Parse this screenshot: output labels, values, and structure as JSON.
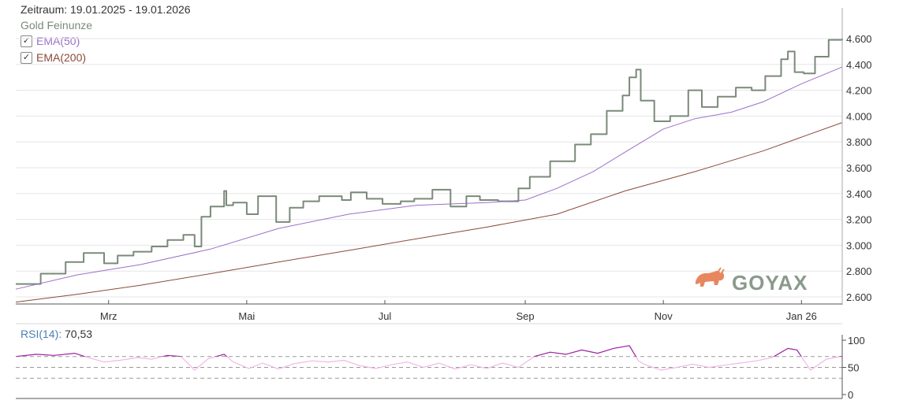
{
  "header": {
    "zeitraum": "Zeitraum: 19.01.2025 - 19.01.2026",
    "series_label": "Gold Feinunze"
  },
  "legend": [
    {
      "label": "EMA(50)",
      "checked": true,
      "color": "#9b6fc8"
    },
    {
      "label": "EMA(200)",
      "checked": true,
      "color": "#8a4a3a"
    }
  ],
  "rsi": {
    "label": "RSI(14):",
    "value": "70,53"
  },
  "brand": {
    "name": "GOYAX",
    "icon": "bull-icon"
  },
  "colors": {
    "price": "#7a8a7a",
    "ema50": "#9b6fc8",
    "ema200": "#8a4a3a",
    "rsi_high": "#9b1fa0",
    "rsi_low": "#f0b8e8",
    "grid": "#e6e6e6",
    "brand_bull": "#e8875f",
    "brand_text": "#8a9a8a"
  },
  "chart_data": [
    {
      "type": "line",
      "title": "",
      "x_ticks": [
        "Mrz",
        "Mai",
        "Jul",
        "Sep",
        "Nov",
        "Jan 26"
      ],
      "y_ticks": [
        "2.600",
        "2.800",
        "3.000",
        "3.200",
        "3.400",
        "3.600",
        "3.800",
        "4.000",
        "4.200",
        "4.400",
        "4.600"
      ],
      "ylim": [
        2540,
        4660
      ],
      "x_range": [
        "2025-01-19",
        "2026-01-19"
      ],
      "grid": true,
      "legend_position": "top-left",
      "series": [
        {
          "name": "Gold Feinunze",
          "x": [
            "2025-01-19",
            "2025-01-30",
            "2025-02-10",
            "2025-02-18",
            "2025-02-27",
            "2025-03-05",
            "2025-03-12",
            "2025-03-20",
            "2025-03-27",
            "2025-04-03",
            "2025-04-08",
            "2025-04-11",
            "2025-04-15",
            "2025-04-21",
            "2025-04-22",
            "2025-04-25",
            "2025-05-01",
            "2025-05-06",
            "2025-05-14",
            "2025-05-20",
            "2025-05-26",
            "2025-06-02",
            "2025-06-12",
            "2025-06-16",
            "2025-06-23",
            "2025-06-30",
            "2025-07-08",
            "2025-07-14",
            "2025-07-22",
            "2025-07-30",
            "2025-08-06",
            "2025-08-12",
            "2025-08-20",
            "2025-08-29",
            "2025-09-03",
            "2025-09-12",
            "2025-09-23",
            "2025-09-30",
            "2025-10-07",
            "2025-10-14",
            "2025-10-17",
            "2025-10-20",
            "2025-10-22",
            "2025-10-28",
            "2025-11-04",
            "2025-11-12",
            "2025-11-18",
            "2025-11-25",
            "2025-12-03",
            "2025-12-10",
            "2025-12-16",
            "2025-12-23",
            "2025-12-26",
            "2025-12-29",
            "2026-01-02",
            "2026-01-07",
            "2026-01-13",
            "2026-01-19"
          ],
          "y": [
            2700,
            2780,
            2870,
            2940,
            2860,
            2920,
            2950,
            2990,
            3040,
            3080,
            2990,
            3220,
            3300,
            3420,
            3310,
            3330,
            3240,
            3380,
            3180,
            3290,
            3340,
            3380,
            3350,
            3410,
            3360,
            3320,
            3340,
            3360,
            3430,
            3300,
            3380,
            3350,
            3340,
            3440,
            3530,
            3650,
            3780,
            3860,
            4040,
            4160,
            4300,
            4360,
            4120,
            3960,
            4000,
            4200,
            4070,
            4150,
            4220,
            4200,
            4310,
            4440,
            4500,
            4340,
            4330,
            4460,
            4590,
            4600
          ]
        },
        {
          "name": "EMA(50)",
          "x": [
            "2025-01-19",
            "2025-02-15",
            "2025-03-15",
            "2025-04-15",
            "2025-05-15",
            "2025-06-15",
            "2025-07-15",
            "2025-08-15",
            "2025-09-01",
            "2025-09-15",
            "2025-10-01",
            "2025-10-15",
            "2025-11-01",
            "2025-11-15",
            "2025-12-01",
            "2025-12-15",
            "2026-01-01",
            "2026-01-19"
          ],
          "y": [
            2660,
            2770,
            2850,
            2970,
            3130,
            3240,
            3310,
            3330,
            3350,
            3440,
            3570,
            3720,
            3900,
            3980,
            4030,
            4110,
            4250,
            4380
          ]
        },
        {
          "name": "EMA(200)",
          "x": [
            "2025-01-19",
            "2025-02-15",
            "2025-03-15",
            "2025-04-15",
            "2025-05-15",
            "2025-06-15",
            "2025-07-15",
            "2025-08-15",
            "2025-09-15",
            "2025-10-15",
            "2025-11-15",
            "2025-12-15",
            "2026-01-19"
          ],
          "y": [
            2560,
            2620,
            2690,
            2780,
            2870,
            2960,
            3050,
            3140,
            3240,
            3420,
            3570,
            3730,
            3950
          ]
        }
      ]
    },
    {
      "type": "line",
      "title": "RSI(14)",
      "y_ticks": [
        "0",
        "50",
        "100"
      ],
      "ylim": [
        -5,
        105
      ],
      "reference_lines": [
        30,
        50,
        70
      ],
      "series": [
        {
          "name": "RSI(14)",
          "x": [
            "2025-01-19",
            "2025-01-28",
            "2025-02-05",
            "2025-02-14",
            "2025-02-20",
            "2025-02-27",
            "2025-03-06",
            "2025-03-14",
            "2025-03-20",
            "2025-03-27",
            "2025-04-02",
            "2025-04-08",
            "2025-04-14",
            "2025-04-21",
            "2025-04-25",
            "2025-05-02",
            "2025-05-08",
            "2025-05-15",
            "2025-05-22",
            "2025-05-30",
            "2025-06-06",
            "2025-06-13",
            "2025-06-20",
            "2025-06-27",
            "2025-07-04",
            "2025-07-11",
            "2025-07-18",
            "2025-07-25",
            "2025-08-01",
            "2025-08-08",
            "2025-08-15",
            "2025-08-22",
            "2025-08-29",
            "2025-09-05",
            "2025-09-12",
            "2025-09-19",
            "2025-09-26",
            "2025-10-03",
            "2025-10-10",
            "2025-10-17",
            "2025-10-21",
            "2025-10-24",
            "2025-10-31",
            "2025-11-07",
            "2025-11-14",
            "2025-11-21",
            "2025-11-28",
            "2025-12-05",
            "2025-12-12",
            "2025-12-19",
            "2025-12-26",
            "2025-12-30",
            "2026-01-05",
            "2026-01-12",
            "2026-01-19"
          ],
          "y": [
            70,
            74,
            72,
            76,
            68,
            60,
            63,
            68,
            65,
            72,
            70,
            45,
            66,
            74,
            60,
            48,
            58,
            47,
            57,
            62,
            60,
            63,
            53,
            48,
            55,
            60,
            50,
            58,
            47,
            55,
            48,
            58,
            50,
            70,
            78,
            74,
            82,
            76,
            85,
            90,
            62,
            55,
            45,
            50,
            56,
            50,
            54,
            58,
            62,
            68,
            85,
            82,
            45,
            65,
            70.53
          ]
        }
      ]
    }
  ]
}
